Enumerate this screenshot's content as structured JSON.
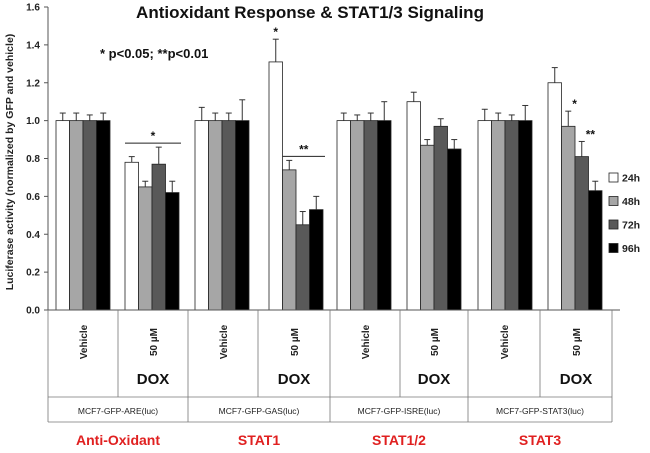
{
  "chart_data": {
    "type": "bar",
    "title": "Antioxidant Response & STAT1/3  Signaling",
    "ylabel": "Luciferase activity (normalized by GFP and vehicle)",
    "xlabel": "",
    "ylim": [
      0,
      1.6
    ],
    "yticks": [
      "0.0",
      "0.2",
      "0.4",
      "0.6",
      "0.8",
      "1.0",
      "1.2",
      "1.4",
      "1.6"
    ],
    "significance_note": "* p<0.05; **p<0.01",
    "categories": [
      "Vehicle",
      "50 µM",
      "Vehicle",
      "50 µM",
      "Vehicle",
      "50 µM",
      "Vehicle",
      "50 µM"
    ],
    "dox_label": "DOX",
    "cell_lines": [
      "MCF7-GFP-ARE(luc)",
      "MCF7-GFP-GAS(luc)",
      "MCF7-GFP-ISRE(luc)",
      "MCF7-GFP-STAT3(luc)"
    ],
    "pathways": [
      "Anti-Oxidant",
      "STAT1",
      "STAT1/2",
      "STAT3"
    ],
    "pathway_color": "#e02020",
    "series": [
      {
        "name": "24h",
        "color": "#ffffff",
        "values": [
          1.0,
          0.78,
          1.0,
          1.31,
          1.0,
          1.1,
          1.0,
          1.2
        ],
        "errors": [
          0.04,
          0.03,
          0.07,
          0.12,
          0.04,
          0.05,
          0.06,
          0.08
        ]
      },
      {
        "name": "48h",
        "color": "#a6a6a6",
        "values": [
          1.0,
          0.65,
          1.0,
          0.74,
          1.0,
          0.87,
          1.0,
          0.97
        ],
        "errors": [
          0.04,
          0.03,
          0.04,
          0.05,
          0.03,
          0.03,
          0.04,
          0.08
        ]
      },
      {
        "name": "72h",
        "color": "#595959",
        "values": [
          1.0,
          0.77,
          1.0,
          0.45,
          1.0,
          0.97,
          1.0,
          0.81
        ],
        "errors": [
          0.03,
          0.09,
          0.04,
          0.07,
          0.04,
          0.04,
          0.03,
          0.08
        ]
      },
      {
        "name": "96h",
        "color": "#000000",
        "values": [
          1.0,
          0.62,
          1.0,
          0.53,
          1.0,
          0.85,
          1.0,
          0.63
        ],
        "errors": [
          0.04,
          0.06,
          0.11,
          0.07,
          0.1,
          0.05,
          0.08,
          0.05
        ]
      }
    ],
    "annotations": [
      {
        "text": "*",
        "group": 1,
        "bracket_from": 0,
        "bracket_to": 3
      },
      {
        "text": "*",
        "group": 3,
        "series": 0
      },
      {
        "text": "**",
        "group": 3,
        "bracket_from": 1,
        "bracket_to": 3
      },
      {
        "text": "*",
        "group": 7,
        "series": 1
      },
      {
        "text": "**",
        "group": 7,
        "series": 2
      }
    ]
  }
}
